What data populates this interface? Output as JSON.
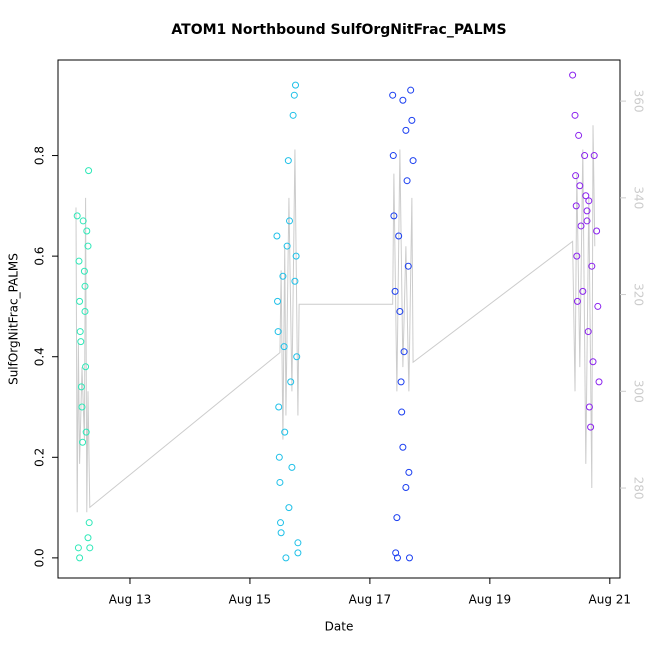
{
  "chart_data": {
    "type": "scatter",
    "title": "ATOM1 Northbound SulfOrgNitFrac_PALMS",
    "x_label": "Date",
    "y_label": "SulfOrgNitFrac_PALMS",
    "xlim": [
      11.8,
      21.17
    ],
    "ylim": [
      -0.04,
      0.99
    ],
    "y2lim": [
      261.4,
      368.5
    ],
    "xticks": [
      {
        "value": 13,
        "label": "Aug 13"
      },
      {
        "value": 15,
        "label": "Aug 15"
      },
      {
        "value": 17,
        "label": "Aug 17"
      },
      {
        "value": 19,
        "label": "Aug 19"
      },
      {
        "value": 21,
        "label": "Aug 21"
      }
    ],
    "yticks": [
      {
        "value": 0,
        "label": "0.0"
      },
      0.2,
      0.4,
      0.6,
      0.8
    ],
    "y2ticks": [
      280,
      300,
      320,
      340,
      360
    ],
    "series": [
      {
        "color": "#2ee8b8",
        "x": [
          12.12,
          12.15,
          12.16,
          12.17,
          12.18,
          12.19,
          12.2,
          12.21,
          12.14,
          12.16,
          12.22,
          12.24,
          12.25,
          12.26,
          12.27,
          12.28,
          12.3,
          12.31,
          12.32,
          12.3,
          12.33,
          12.25
        ],
        "values": [
          0.68,
          0.59,
          0.51,
          0.45,
          0.43,
          0.34,
          0.3,
          0.23,
          0.02,
          0.0,
          0.67,
          0.57,
          0.49,
          0.38,
          0.25,
          0.65,
          0.62,
          0.77,
          0.07,
          0.04,
          0.02,
          0.54
        ]
      },
      {
        "color": "#1ec0e8",
        "x": [
          15.45,
          15.46,
          15.47,
          15.48,
          15.49,
          15.5,
          15.51,
          15.52,
          15.55,
          15.57,
          15.58,
          15.6,
          15.62,
          15.64,
          15.66,
          15.68,
          15.7,
          15.72,
          15.74,
          15.76,
          15.77,
          15.78,
          15.8,
          15.8,
          15.65,
          15.75
        ],
        "values": [
          0.64,
          0.51,
          0.45,
          0.3,
          0.2,
          0.15,
          0.07,
          0.05,
          0.56,
          0.42,
          0.25,
          0.0,
          0.62,
          0.79,
          0.67,
          0.35,
          0.18,
          0.88,
          0.92,
          0.94,
          0.6,
          0.4,
          0.03,
          0.01,
          0.1,
          0.55
        ]
      },
      {
        "color": "#1a3ef0",
        "x": [
          17.38,
          17.39,
          17.4,
          17.42,
          17.43,
          17.45,
          17.46,
          17.48,
          17.5,
          17.52,
          17.53,
          17.55,
          17.57,
          17.6,
          17.62,
          17.64,
          17.65,
          17.68,
          17.7,
          17.72,
          17.66,
          17.6,
          17.55
        ],
        "values": [
          0.92,
          0.8,
          0.68,
          0.53,
          0.01,
          0.08,
          0.0,
          0.64,
          0.49,
          0.35,
          0.29,
          0.22,
          0.41,
          0.85,
          0.75,
          0.58,
          0.17,
          0.93,
          0.87,
          0.79,
          0.0,
          0.14,
          0.91
        ]
      },
      {
        "color": "#8a22ee",
        "x": [
          20.38,
          20.42,
          20.43,
          20.44,
          20.45,
          20.46,
          20.48,
          20.5,
          20.52,
          20.55,
          20.58,
          20.6,
          20.62,
          20.64,
          20.66,
          20.68,
          20.7,
          20.72,
          20.74,
          20.78,
          20.8,
          20.82,
          20.62,
          20.65
        ],
        "values": [
          0.96,
          0.88,
          0.76,
          0.7,
          0.6,
          0.51,
          0.84,
          0.74,
          0.66,
          0.53,
          0.8,
          0.72,
          0.67,
          0.45,
          0.3,
          0.26,
          0.58,
          0.39,
          0.8,
          0.65,
          0.5,
          0.35,
          0.69,
          0.71
        ]
      },
      {
        "color": "#cccccc",
        "axis": "y2",
        "x": [
          12.1,
          12.12,
          12.14,
          12.16,
          12.2,
          12.24,
          12.26,
          12.28,
          12.3,
          12.33,
          15.5,
          15.52,
          15.55,
          15.58,
          15.6,
          15.65,
          15.7,
          15.75,
          15.8,
          15.82,
          17.38,
          17.4,
          17.45,
          17.5,
          17.55,
          17.6,
          17.65,
          17.7,
          17.72,
          20.38,
          20.42,
          20.45,
          20.5,
          20.55,
          20.6,
          20.65,
          20.7,
          20.72,
          20.75
        ],
        "values": [
          338,
          275,
          310,
          285,
          305,
          290,
          340,
          275,
          300,
          276,
          308,
          325,
          290,
          330,
          295,
          340,
          300,
          350,
          295,
          318,
          318,
          345,
          300,
          350,
          305,
          330,
          300,
          340,
          306,
          331,
          300,
          345,
          305,
          350,
          285,
          340,
          280,
          355,
          330
        ]
      }
    ]
  }
}
